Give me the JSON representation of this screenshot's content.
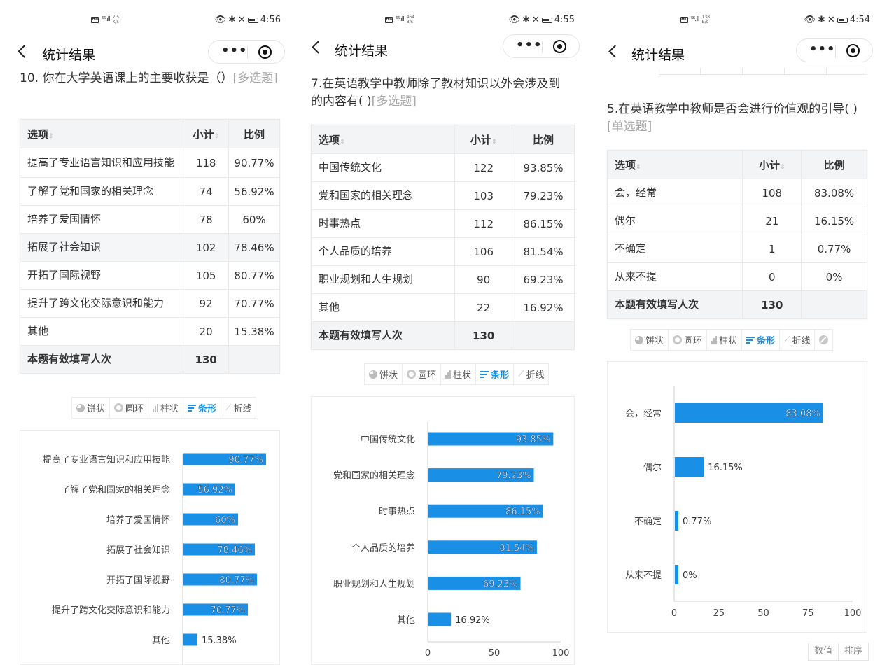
{
  "common": {
    "nav_title": "统计结果",
    "more_label": "•••",
    "columns": {
      "option": "选项",
      "count": "小计",
      "ratio": "比例"
    },
    "sort_glyph": "⇕",
    "total_label": "本题有效填写人次",
    "chart_tabs": [
      "饼状",
      "圆环",
      "柱状",
      "条形",
      "折线"
    ],
    "active_tab": "条形",
    "bar_color": "#1a8fe6"
  },
  "panels": [
    {
      "status": {
        "signal": "⁵⁶.ıll",
        "speed": "2.5\nK/s",
        "time": "4:56"
      },
      "question": {
        "text": "10. 你在大学英语课上的主要收获是（）",
        "tag": "[多选题]"
      },
      "rows": [
        {
          "option": "提高了专业语言知识和应用技能",
          "count": "118",
          "ratio": "90.77%"
        },
        {
          "option": "了解了党和国家的相关理念",
          "count": "74",
          "ratio": "56.92%"
        },
        {
          "option": "培养了爱国情怀",
          "count": "78",
          "ratio": "60%"
        },
        {
          "option": "拓展了社会知识",
          "count": "102",
          "ratio": "78.46%"
        },
        {
          "option": "开拓了国际视野",
          "count": "105",
          "ratio": "80.77%"
        },
        {
          "option": "提升了跨文化交际意识和能力",
          "count": "92",
          "ratio": "70.77%"
        },
        {
          "option": "其他",
          "count": "20",
          "ratio": "15.38%"
        }
      ],
      "total": "130",
      "chart_data": {
        "type": "bar",
        "categories": [
          "提高了专业语言知识和应用技能",
          "了解了党和国家的相关理念",
          "培养了爱国情怀",
          "拓展了社会知识",
          "开拓了国际视野",
          "提升了跨文化交际意识和能力",
          "其他"
        ],
        "values": [
          90.77,
          56.92,
          60,
          78.46,
          80.77,
          70.77,
          15.38
        ],
        "data_labels": [
          "90.77%",
          "56.92%",
          "60%",
          "78.46%",
          "80.77%",
          "70.77%",
          "15.38%"
        ],
        "xlim": [
          0,
          100
        ],
        "x_ticks": []
      }
    },
    {
      "status": {
        "signal": "⁵⁶.ıll",
        "speed": "464\nB/s",
        "time": "4:55"
      },
      "question": {
        "text": "7.在英语教学中教师除了教材知识以外会涉及到的内容有( )",
        "tag": "[多选题]"
      },
      "rows": [
        {
          "option": "中国传统文化",
          "count": "122",
          "ratio": "93.85%"
        },
        {
          "option": "党和国家的相关理念",
          "count": "103",
          "ratio": "79.23%"
        },
        {
          "option": "时事热点",
          "count": "112",
          "ratio": "86.15%"
        },
        {
          "option": "个人品质的培养",
          "count": "106",
          "ratio": "81.54%"
        },
        {
          "option": "职业规划和人生规划",
          "count": "90",
          "ratio": "69.23%"
        },
        {
          "option": "其他",
          "count": "22",
          "ratio": "16.92%"
        }
      ],
      "total": "130",
      "chart_data": {
        "type": "bar",
        "categories": [
          "中国传统文化",
          "党和国家的相关理念",
          "时事热点",
          "个人品质的培养",
          "职业规划和人生规划",
          "其他"
        ],
        "values": [
          93.85,
          79.23,
          86.15,
          81.54,
          69.23,
          16.92
        ],
        "data_labels": [
          "93.85%",
          "79.23%",
          "86.15%",
          "81.54%",
          "69.23%",
          "16.92%"
        ],
        "xlim": [
          0,
          100
        ],
        "x_ticks": [
          "0",
          "50",
          "100"
        ]
      }
    },
    {
      "status": {
        "signal": "⁵⁶.ıll",
        "speed": "138\nB/s",
        "time": "4:54"
      },
      "question": {
        "text": "5.在英语教学中教师是否会进行价值观的引导( )",
        "tag": "[单选题]"
      },
      "rows": [
        {
          "option": "会，经常",
          "count": "108",
          "ratio": "83.08%"
        },
        {
          "option": "偶尔",
          "count": "21",
          "ratio": "16.15%"
        },
        {
          "option": "不确定",
          "count": "1",
          "ratio": "0.77%"
        },
        {
          "option": "从来不提",
          "count": "0",
          "ratio": "0%"
        }
      ],
      "total": "130",
      "chart_data": {
        "type": "bar",
        "categories": [
          "会，经常",
          "偶尔",
          "不确定",
          "从来不提"
        ],
        "values": [
          83.08,
          16.15,
          0.77,
          0
        ],
        "data_labels": [
          "83.08%",
          "16.15%",
          "0.77%",
          "0%"
        ],
        "xlim": [
          0,
          100
        ],
        "x_ticks": [
          "0",
          "25",
          "50",
          "75",
          "100"
        ]
      },
      "footer": {
        "value_btn": "数值",
        "sort_btn": "排序"
      }
    }
  ]
}
